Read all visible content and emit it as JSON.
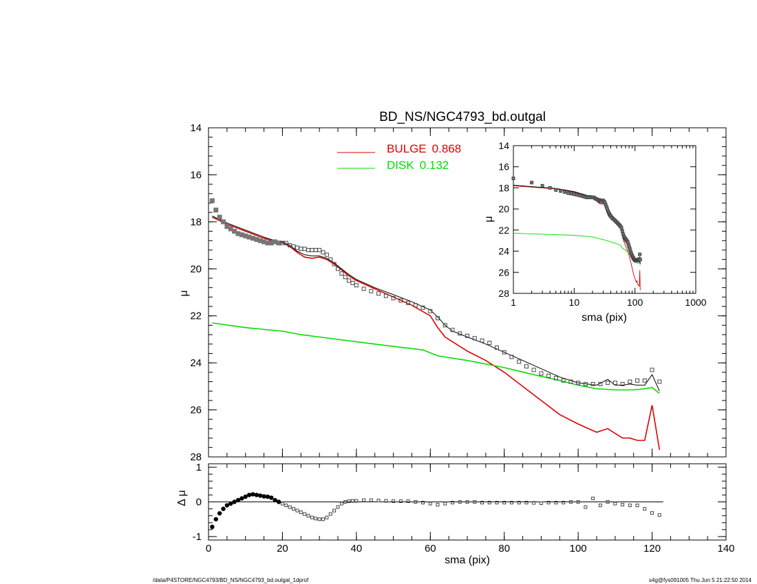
{
  "footer": {
    "left": "/data/P4STORE/NGC4793/BD_NS/NGC4793_bd.outgal_1dprof",
    "right": "s4g@fys091005  Thu Jun  5 21:22:50 2014"
  },
  "colors": {
    "bulge": "#dd0000",
    "disk": "#00dd00",
    "total": "#000000",
    "data": "#555555"
  },
  "chart_data": [
    {
      "id": "main",
      "type": "line",
      "title": "BD_NS/NGC4793_bd.outgal",
      "xlabel": "",
      "ylabel": "μ",
      "xlim": [
        0,
        140
      ],
      "ylim": [
        28,
        14
      ],
      "xticks": [
        0,
        20,
        40,
        60,
        80,
        100,
        120,
        140
      ],
      "yticks": [
        14,
        16,
        18,
        20,
        22,
        24,
        26,
        28
      ],
      "legend": {
        "placement": "top-center",
        "entries": [
          {
            "name": "BULGE",
            "value": "0.868",
            "color": "#dd0000"
          },
          {
            "name": "DISK",
            "value": "0.132",
            "color": "#00dd00"
          }
        ]
      },
      "data_points": {
        "x": [
          1,
          2,
          3,
          4,
          5,
          6,
          7,
          8,
          9,
          10,
          11,
          12,
          13,
          14,
          15,
          16,
          17,
          18,
          19,
          20,
          21,
          22,
          23,
          24,
          25,
          26,
          27,
          28,
          29,
          30,
          31,
          32,
          33,
          34,
          35,
          36,
          37,
          38,
          39,
          40,
          42,
          44,
          46,
          48,
          50,
          52,
          54,
          56,
          58,
          60,
          62,
          64,
          66,
          68,
          70,
          72,
          74,
          76,
          78,
          80,
          82,
          84,
          86,
          88,
          90,
          92,
          94,
          96,
          98,
          100,
          102,
          104,
          106,
          108,
          110,
          112,
          114,
          116,
          118,
          120,
          122
        ],
        "y": [
          17.1,
          17.5,
          17.8,
          18.0,
          18.2,
          18.3,
          18.4,
          18.5,
          18.55,
          18.6,
          18.65,
          18.7,
          18.75,
          18.8,
          18.85,
          18.9,
          18.9,
          18.85,
          18.9,
          18.9,
          18.9,
          19.0,
          19.05,
          19.1,
          19.15,
          19.15,
          19.2,
          19.2,
          19.2,
          19.2,
          19.3,
          19.4,
          19.6,
          19.8,
          20.0,
          20.2,
          20.35,
          20.5,
          20.6,
          20.7,
          20.85,
          20.95,
          21.05,
          21.15,
          21.25,
          21.35,
          21.45,
          21.55,
          21.65,
          21.8,
          22.1,
          22.4,
          22.6,
          22.75,
          22.85,
          22.95,
          23.05,
          23.15,
          23.35,
          23.55,
          23.75,
          23.95,
          24.15,
          24.3,
          24.45,
          24.55,
          24.65,
          24.75,
          24.8,
          24.85,
          24.9,
          24.9,
          24.9,
          24.85,
          24.85,
          24.9,
          24.8,
          24.75,
          24.75,
          24.3,
          24.8
        ]
      },
      "series": [
        {
          "name": "BULGE",
          "color": "#dd0000",
          "x": [
            1,
            5,
            10,
            15,
            18,
            20,
            22,
            24,
            26,
            28,
            30,
            32,
            34,
            36,
            38,
            40,
            45,
            50,
            55,
            60,
            62,
            64,
            66,
            70,
            75,
            80,
            85,
            90,
            95,
            100,
            105,
            108,
            110,
            112,
            114,
            116,
            118,
            120,
            122
          ],
          "y": [
            17.8,
            18.1,
            18.4,
            18.7,
            18.85,
            18.9,
            19.05,
            19.3,
            19.5,
            19.55,
            19.5,
            19.6,
            19.8,
            20.05,
            20.3,
            20.5,
            20.85,
            21.2,
            21.55,
            22.0,
            22.5,
            22.9,
            23.1,
            23.5,
            23.9,
            24.4,
            25.0,
            25.6,
            26.2,
            26.6,
            26.95,
            26.8,
            27.0,
            27.2,
            27.2,
            27.3,
            27.3,
            25.8,
            27.7
          ]
        },
        {
          "name": "DISK",
          "color": "#00dd00",
          "x": [
            1,
            10,
            20,
            25,
            30,
            40,
            50,
            58,
            62,
            70,
            80,
            88,
            95,
            100,
            105,
            110,
            115,
            118,
            120,
            122
          ],
          "y": [
            22.3,
            22.5,
            22.65,
            22.8,
            22.9,
            23.1,
            23.3,
            23.45,
            23.7,
            23.9,
            24.2,
            24.5,
            24.75,
            24.95,
            25.1,
            25.15,
            25.15,
            25.1,
            25.05,
            25.3
          ]
        },
        {
          "name": "TOTAL",
          "color": "#000000",
          "x": [
            1,
            5,
            10,
            15,
            18,
            20,
            22,
            24,
            26,
            28,
            30,
            32,
            34,
            36,
            38,
            40,
            45,
            50,
            55,
            60,
            62,
            64,
            66,
            70,
            75,
            80,
            85,
            90,
            95,
            100,
            105,
            108,
            110,
            112,
            114,
            116,
            118,
            120,
            122
          ],
          "y": [
            17.75,
            18.05,
            18.35,
            18.65,
            18.8,
            18.85,
            19.0,
            19.25,
            19.4,
            19.45,
            19.45,
            19.55,
            19.75,
            20.0,
            20.25,
            20.45,
            20.8,
            21.1,
            21.4,
            21.75,
            22.05,
            22.4,
            22.65,
            22.9,
            23.2,
            23.55,
            23.9,
            24.25,
            24.6,
            24.85,
            24.95,
            24.7,
            24.95,
            24.95,
            24.9,
            24.95,
            24.95,
            24.5,
            25.2
          ]
        }
      ]
    },
    {
      "id": "residual",
      "type": "scatter",
      "xlabel": "sma (pix)",
      "ylabel": "Δ μ",
      "xlim": [
        0,
        140
      ],
      "ylim": [
        -1.1,
        1.1
      ],
      "xticks": [
        0,
        20,
        40,
        60,
        80,
        100,
        120,
        140
      ],
      "yticks": [
        -1,
        0,
        1
      ],
      "reference_line": {
        "y": 0,
        "x_from": 1,
        "x_to": 123
      },
      "x": [
        1,
        2,
        3,
        4,
        5,
        6,
        7,
        8,
        9,
        10,
        11,
        12,
        13,
        14,
        15,
        16,
        17,
        18,
        19,
        20,
        21,
        22,
        23,
        24,
        25,
        26,
        27,
        28,
        29,
        30,
        31,
        32,
        33,
        34,
        35,
        36,
        37,
        38,
        39,
        40,
        42,
        44,
        46,
        48,
        50,
        52,
        54,
        56,
        58,
        60,
        62,
        64,
        66,
        68,
        70,
        72,
        74,
        76,
        78,
        80,
        82,
        84,
        86,
        88,
        90,
        92,
        94,
        96,
        98,
        100,
        102,
        104,
        106,
        108,
        110,
        112,
        114,
        116,
        118,
        120,
        122
      ],
      "y": [
        -0.72,
        -0.5,
        -0.33,
        -0.2,
        -0.1,
        -0.05,
        0.0,
        0.05,
        0.1,
        0.15,
        0.2,
        0.22,
        0.2,
        0.18,
        0.16,
        0.15,
        0.12,
        0.05,
        0.0,
        -0.05,
        -0.1,
        -0.15,
        -0.2,
        -0.25,
        -0.3,
        -0.35,
        -0.4,
        -0.45,
        -0.48,
        -0.5,
        -0.5,
        -0.45,
        -0.35,
        -0.25,
        -0.15,
        -0.05,
        0.0,
        0.02,
        0.03,
        0.03,
        0.05,
        0.05,
        0.04,
        0.03,
        0.02,
        0.02,
        0.02,
        0.0,
        -0.02,
        -0.05,
        -0.08,
        -0.05,
        -0.02,
        0.0,
        0.0,
        0.0,
        -0.02,
        -0.02,
        -0.02,
        -0.02,
        -0.02,
        -0.02,
        -0.02,
        -0.03,
        -0.04,
        -0.02,
        -0.02,
        -0.02,
        0.0,
        0.0,
        -0.15,
        0.1,
        -0.1,
        0.0,
        -0.05,
        -0.08,
        -0.1,
        -0.1,
        -0.2,
        -0.32,
        -0.38
      ]
    },
    {
      "id": "inset",
      "type": "line",
      "xlabel": "sma (pix)",
      "ylabel": "μ",
      "xscale": "log",
      "xlim": [
        1,
        1000
      ],
      "ylim": [
        28,
        14
      ],
      "xticks": [
        1,
        10,
        100,
        1000
      ],
      "yticks": [
        14,
        16,
        18,
        20,
        22,
        24,
        26,
        28
      ]
    }
  ]
}
